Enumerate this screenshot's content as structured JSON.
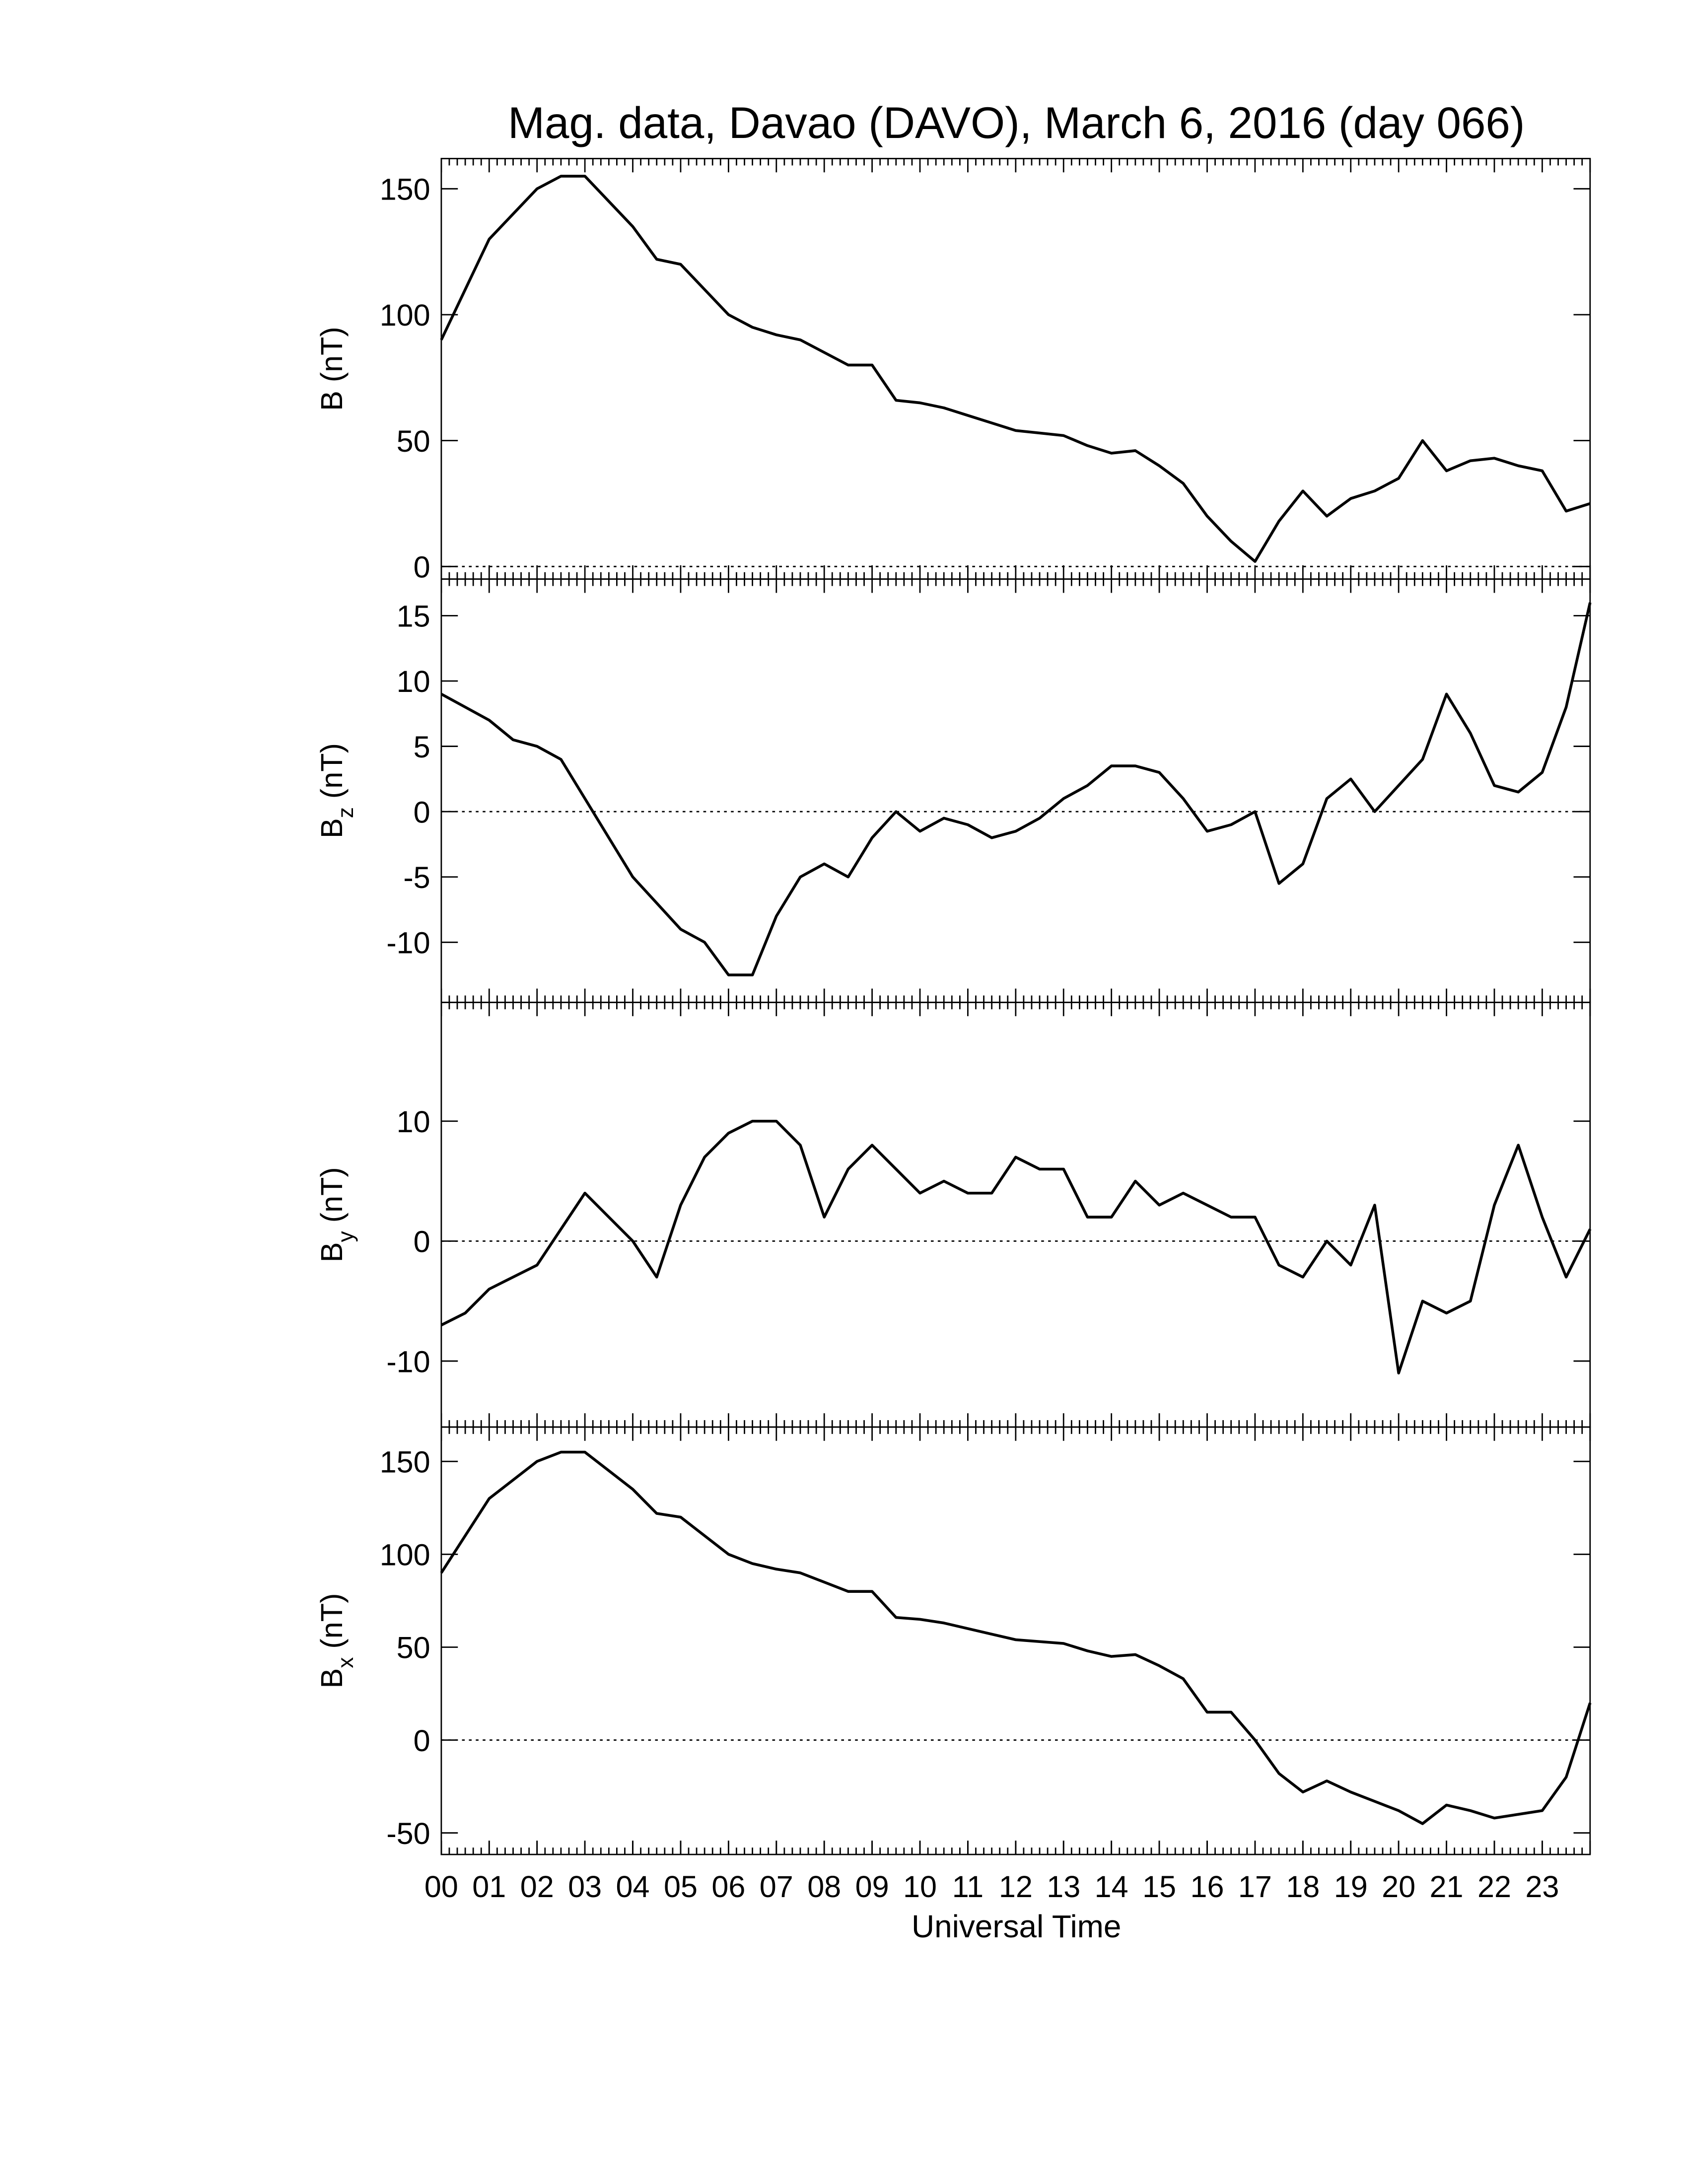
{
  "title": "Mag. data, Davao (DAVO), March 6, 2016 (day 066)",
  "xlabel": "Universal Time",
  "chart_data": [
    {
      "type": "line",
      "ylabel": "B",
      "ylabel_unit": "(nT)",
      "color": "#000000",
      "hline": 0,
      "xlim": [
        0,
        24
      ],
      "ylim": [
        -5,
        162
      ],
      "yticks": [
        0,
        50,
        100,
        150
      ],
      "x": [
        0,
        0.5,
        1,
        1.5,
        2,
        2.5,
        3,
        3.5,
        4,
        4.5,
        5,
        5.5,
        6,
        6.5,
        7,
        7.5,
        8,
        8.5,
        9,
        9.5,
        10,
        10.5,
        11,
        11.5,
        12,
        12.5,
        13,
        13.5,
        14,
        14.5,
        15,
        15.5,
        16,
        16.5,
        17,
        17.5,
        18,
        18.5,
        19,
        19.5,
        20,
        20.5,
        21,
        21.5,
        22,
        22.5,
        23,
        23.5,
        24
      ],
      "values": [
        90,
        110,
        130,
        140,
        150,
        155,
        155,
        145,
        135,
        122,
        120,
        110,
        100,
        95,
        92,
        90,
        85,
        80,
        80,
        66,
        65,
        63,
        60,
        57,
        54,
        53,
        52,
        48,
        45,
        46,
        40,
        33,
        20,
        10,
        2,
        18,
        30,
        20,
        27,
        30,
        35,
        50,
        38,
        42,
        43,
        40,
        38,
        22,
        25
      ]
    },
    {
      "type": "line",
      "ylabel": "B",
      "ylabel_sub": "z",
      "ylabel_unit": "(nT)",
      "color": "#000000",
      "hline": 0,
      "xlim": [
        0,
        24
      ],
      "ylim": [
        -14.6,
        17.8
      ],
      "yticks": [
        -10,
        -5,
        0,
        5,
        10,
        15
      ],
      "x": [
        0,
        0.5,
        1,
        1.5,
        2,
        2.5,
        3,
        3.5,
        4,
        4.5,
        5,
        5.5,
        6,
        6.5,
        7,
        7.5,
        8,
        8.5,
        9,
        9.5,
        10,
        10.5,
        11,
        11.5,
        12,
        12.5,
        13,
        13.5,
        14,
        14.5,
        15,
        15.5,
        16,
        16.5,
        17,
        17.5,
        18,
        18.5,
        19,
        19.5,
        20,
        20.5,
        21,
        21.5,
        22,
        22.5,
        23,
        23.5,
        24
      ],
      "values": [
        9,
        8,
        7,
        5.5,
        5,
        4,
        1,
        -2,
        -5,
        -7,
        -9,
        -10,
        -12.5,
        -12.5,
        -8,
        -5,
        -4,
        -5,
        -2,
        0,
        -1.5,
        -0.5,
        -1,
        -2,
        -1.5,
        -0.5,
        1,
        2,
        3.5,
        3.5,
        3,
        1,
        -1.5,
        -1,
        0,
        -5.5,
        -4,
        1,
        2.5,
        0,
        2,
        4,
        9,
        6,
        2,
        1.5,
        3,
        8,
        16
      ]
    },
    {
      "type": "line",
      "ylabel": "B",
      "ylabel_sub": "y",
      "ylabel_unit": "(nT)",
      "color": "#000000",
      "hline": 0,
      "xlim": [
        0,
        24
      ],
      "ylim": [
        -15.5,
        19.9
      ],
      "yticks": [
        -10,
        0,
        10
      ],
      "x": [
        0,
        0.5,
        1,
        1.5,
        2,
        2.5,
        3,
        3.5,
        4,
        4.5,
        5,
        5.5,
        6,
        6.5,
        7,
        7.5,
        8,
        8.5,
        9,
        9.5,
        10,
        10.5,
        11,
        11.5,
        12,
        12.5,
        13,
        13.5,
        14,
        14.5,
        15,
        15.5,
        16,
        16.5,
        17,
        17.5,
        18,
        18.5,
        19,
        19.5,
        20,
        20.5,
        21,
        21.5,
        22,
        22.5,
        23,
        23.5,
        24
      ],
      "values": [
        -7,
        -6,
        -4,
        -3,
        -2,
        1,
        4,
        2,
        0,
        -3,
        3,
        7,
        9,
        10,
        10,
        8,
        2,
        6,
        8,
        6,
        4,
        5,
        4,
        4,
        7,
        6,
        6,
        2,
        2,
        5,
        3,
        4,
        3,
        2,
        2,
        -2,
        -3,
        0,
        -2,
        3,
        -11,
        -5,
        -6,
        -5,
        3,
        8,
        2,
        -3,
        1
      ]
    },
    {
      "type": "line",
      "ylabel": "B",
      "ylabel_sub": "x",
      "ylabel_unit": "(nT)",
      "color": "#000000",
      "hline": 0,
      "xlim": [
        0,
        24
      ],
      "ylim": [
        -61.6,
        168.5
      ],
      "yticks": [
        -50,
        0,
        50,
        100,
        150
      ],
      "xticks": [
        {
          "value": 0,
          "label": "00"
        },
        {
          "value": 1,
          "label": "01"
        },
        {
          "value": 2,
          "label": "02"
        },
        {
          "value": 3,
          "label": "03"
        },
        {
          "value": 4,
          "label": "04"
        },
        {
          "value": 5,
          "label": "05"
        },
        {
          "value": 6,
          "label": "06"
        },
        {
          "value": 7,
          "label": "07"
        },
        {
          "value": 8,
          "label": "08"
        },
        {
          "value": 9,
          "label": "09"
        },
        {
          "value": 10,
          "label": "10"
        },
        {
          "value": 11,
          "label": "11"
        },
        {
          "value": 12,
          "label": "12"
        },
        {
          "value": 13,
          "label": "13"
        },
        {
          "value": 14,
          "label": "14"
        },
        {
          "value": 15,
          "label": "15"
        },
        {
          "value": 16,
          "label": "16"
        },
        {
          "value": 17,
          "label": "17"
        },
        {
          "value": 18,
          "label": "18"
        },
        {
          "value": 19,
          "label": "19"
        },
        {
          "value": 20,
          "label": "20"
        },
        {
          "value": 21,
          "label": "21"
        },
        {
          "value": 22,
          "label": "22"
        },
        {
          "value": 23,
          "label": "23"
        }
      ],
      "x": [
        0,
        0.5,
        1,
        1.5,
        2,
        2.5,
        3,
        3.5,
        4,
        4.5,
        5,
        5.5,
        6,
        6.5,
        7,
        7.5,
        8,
        8.5,
        9,
        9.5,
        10,
        10.5,
        11,
        11.5,
        12,
        12.5,
        13,
        13.5,
        14,
        14.5,
        15,
        15.5,
        16,
        16.5,
        17,
        17.5,
        18,
        18.5,
        19,
        19.5,
        20,
        20.5,
        21,
        21.5,
        22,
        22.5,
        23,
        23.5,
        24
      ],
      "values": [
        90,
        110,
        130,
        140,
        150,
        155,
        155,
        145,
        135,
        122,
        120,
        110,
        100,
        95,
        92,
        90,
        85,
        80,
        80,
        66,
        65,
        63,
        60,
        57,
        54,
        53,
        52,
        48,
        45,
        46,
        40,
        33,
        15,
        15,
        0,
        -18,
        -28,
        -22,
        -28,
        -33,
        -38,
        -45,
        -35,
        -38,
        -42,
        -40,
        -38,
        -20,
        20
      ]
    }
  ]
}
